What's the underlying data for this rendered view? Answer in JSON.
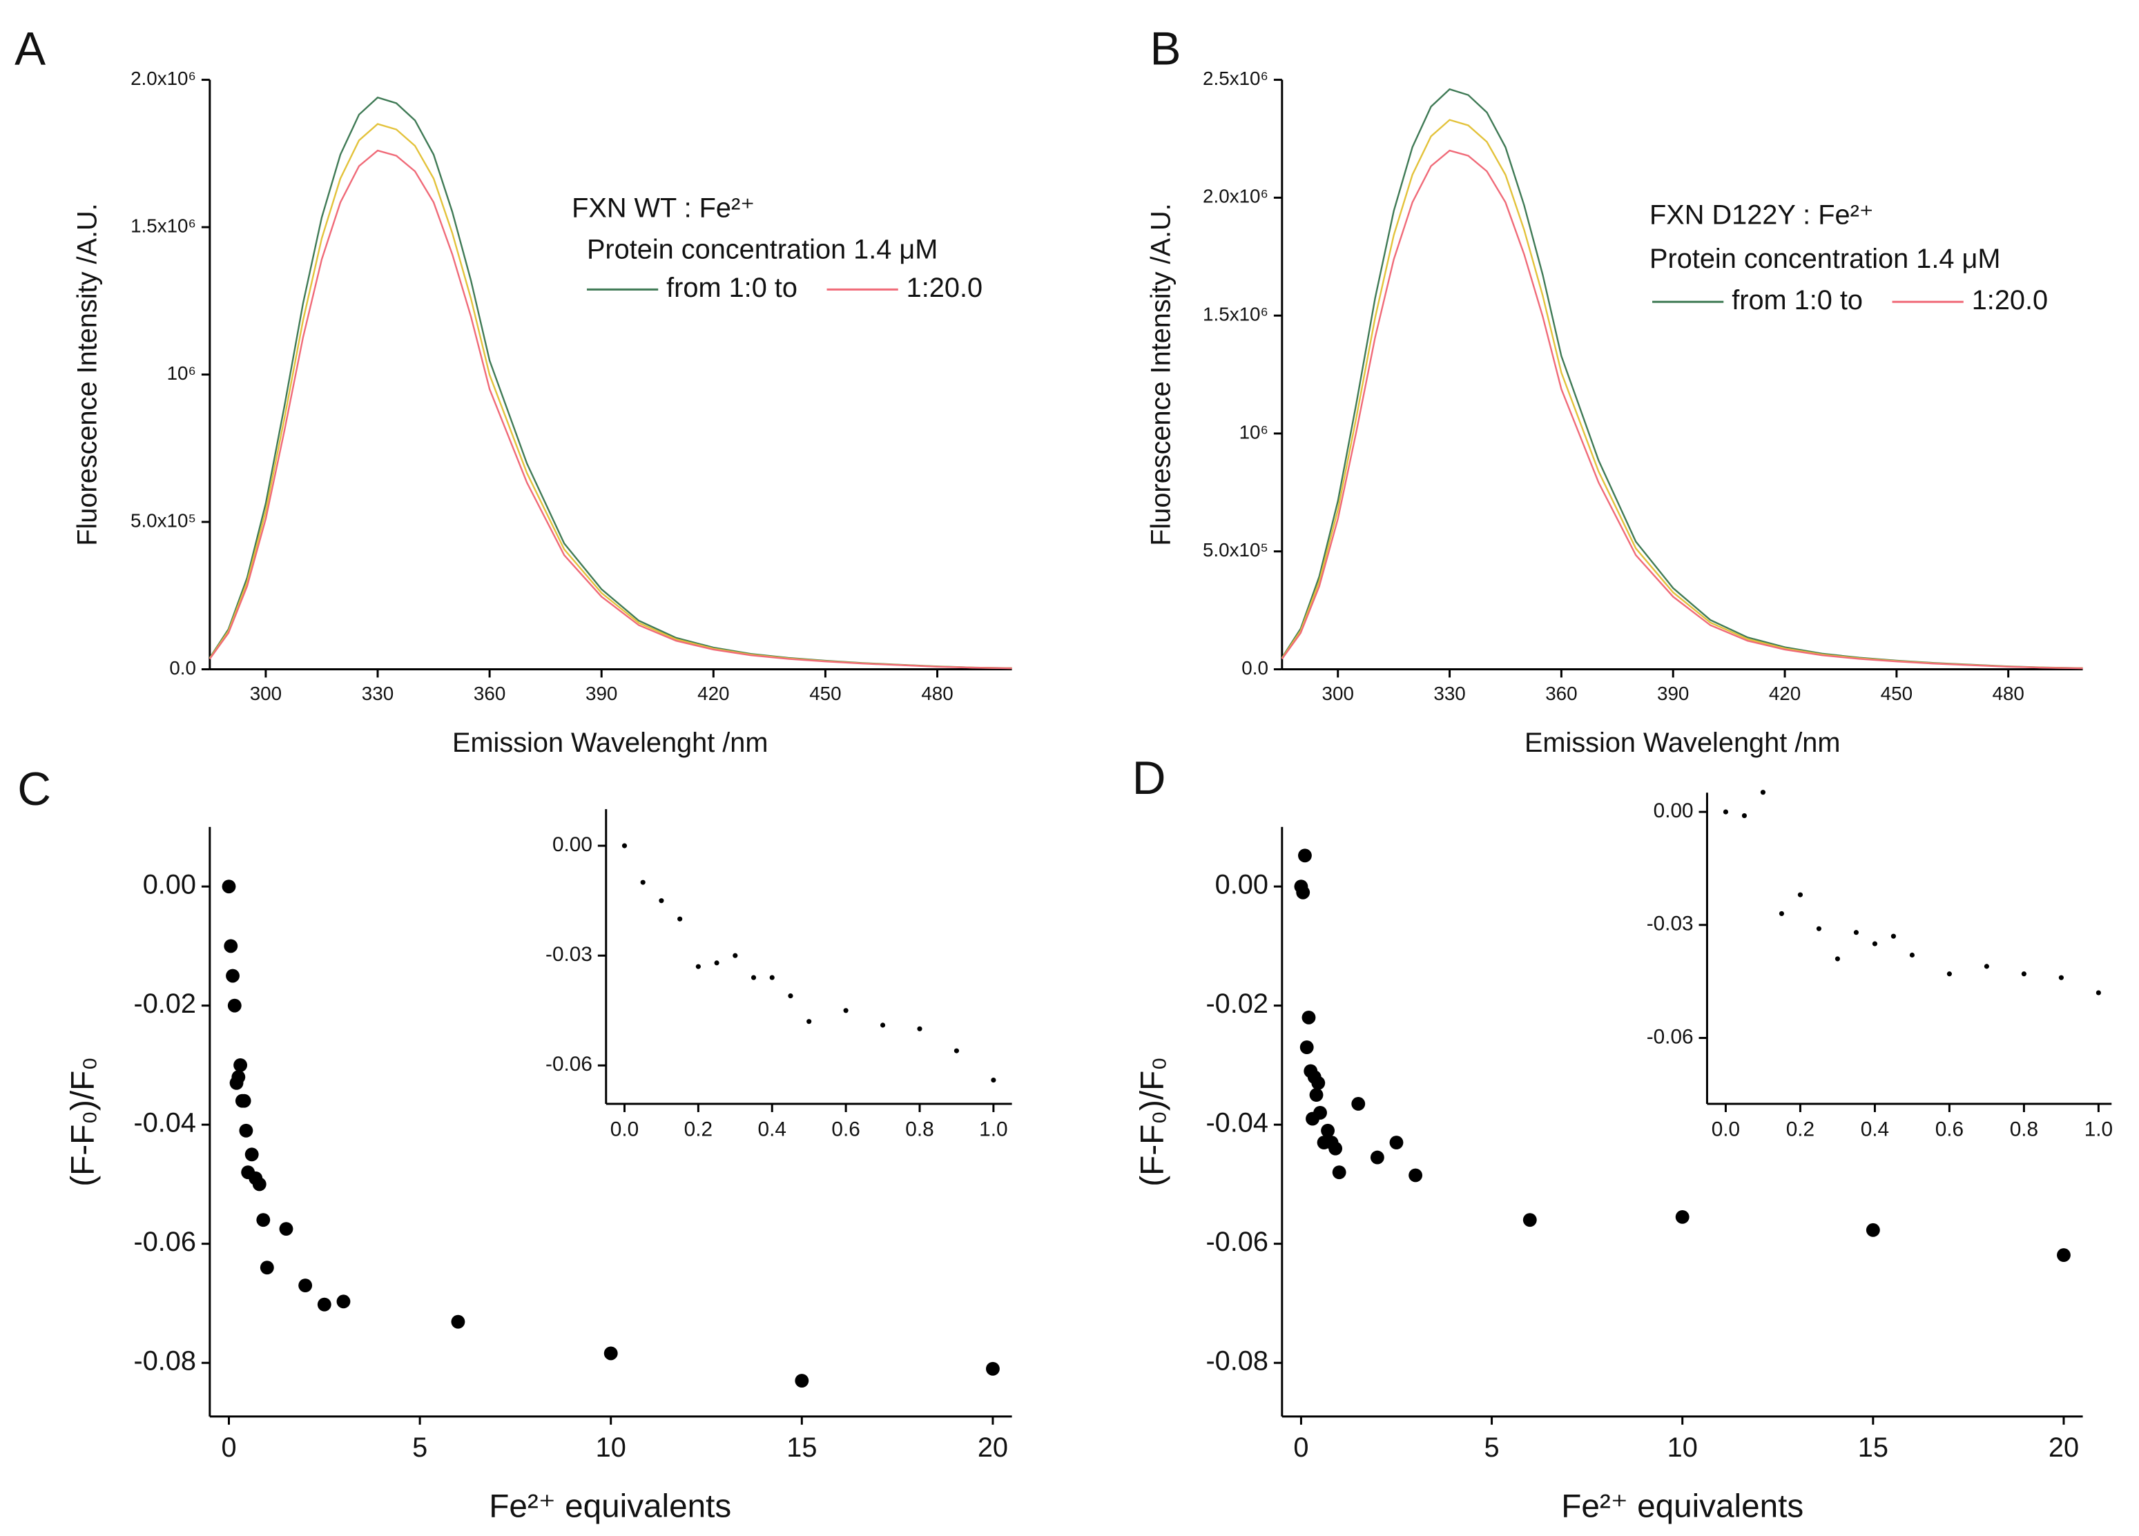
{
  "chart_data": [
    {
      "type": "line",
      "label": "A",
      "xlabel": "Emission Wavelenght /nm",
      "ylabel": "Fluorescence Intensity /A.U.",
      "annotations": [
        "FXN WT : Fe²⁺",
        "Protein concentration 1.4 μM"
      ],
      "x": [
        285,
        290,
        295,
        300,
        305,
        310,
        315,
        320,
        325,
        330,
        335,
        340,
        345,
        350,
        355,
        360,
        370,
        380,
        390,
        400,
        410,
        420,
        430,
        440,
        450,
        460,
        470,
        480,
        490,
        500
      ],
      "series": [
        {
          "name": "from 1:0 to",
          "color": "#3f7a55",
          "values": [
            38800,
            135800,
            310400,
            562600,
            892400,
            1241600,
            1532600,
            1746000,
            1881800,
            1940000,
            1920600,
            1862400,
            1746000,
            1552000,
            1319200,
            1047600,
            698400,
            426800,
            271600,
            164900,
            106700,
            73700,
            52400,
            38800,
            29100,
            21300,
            15500,
            9700,
            5800,
            3900
          ]
        },
        {
          "color": "#e3c23a",
          "values": [
            37000,
            129500,
            296000,
            536500,
            851000,
            1184000,
            1461500,
            1665000,
            1794500,
            1850000,
            1831500,
            1776000,
            1665000,
            1480000,
            1258000,
            999000,
            666000,
            407000,
            259000,
            157300,
            101800,
            70300,
            50000,
            37000,
            27800,
            20400,
            14800,
            9300,
            5600,
            3700
          ]
        },
        {
          "name": "1:20.0",
          "color": "#f06a78",
          "values": [
            35200,
            123200,
            281600,
            510400,
            809600,
            1126400,
            1390400,
            1584000,
            1707200,
            1760000,
            1742400,
            1689600,
            1584000,
            1408000,
            1196800,
            950400,
            633600,
            387200,
            246400,
            149600,
            96800,
            66900,
            47500,
            35200,
            26400,
            19400,
            14100,
            8800,
            5300,
            3500
          ]
        }
      ],
      "xlim": [
        285,
        500
      ],
      "xticks": [
        300,
        330,
        360,
        390,
        420,
        450,
        480
      ],
      "ylim": [
        0,
        2000000
      ],
      "yticks": [
        {
          "value": 0,
          "label": "0.0"
        },
        {
          "value": 500000,
          "label": "5.0x10⁵"
        },
        {
          "value": 1000000,
          "label": "10⁶"
        },
        {
          "value": 1500000,
          "label": "1.5x10⁶"
        },
        {
          "value": 2000000,
          "label": "2.0x10⁶"
        }
      ]
    },
    {
      "type": "line",
      "label": "B",
      "xlabel": "Emission Wavelenght /nm",
      "ylabel": "Fluorescence Intensity /A.U.",
      "annotations": [
        "FXN D122Y : Fe²⁺",
        "Protein concentration 1.4 μM"
      ],
      "x": [
        285,
        290,
        295,
        300,
        305,
        310,
        315,
        320,
        325,
        330,
        335,
        340,
        345,
        350,
        355,
        360,
        370,
        380,
        390,
        400,
        410,
        420,
        430,
        440,
        450,
        460,
        470,
        480,
        490,
        500
      ],
      "series": [
        {
          "name": "from 1:0 to",
          "color": "#3f7a55",
          "values": [
            49200,
            172200,
            393600,
            713400,
            1131600,
            1574400,
            1943400,
            2214000,
            2386200,
            2460000,
            2435400,
            2361600,
            2214000,
            1968000,
            1672800,
            1328400,
            885600,
            541200,
            344400,
            209100,
            135300,
            93500,
            66400,
            49200,
            36900,
            27100,
            19700,
            12300,
            7400,
            4900
          ]
        },
        {
          "color": "#e3c23a",
          "values": [
            46600,
            163100,
            372800,
            675700,
            1071800,
            1491200,
            1840700,
            2097000,
            2260100,
            2330000,
            2306700,
            2236800,
            2097000,
            1864000,
            1584400,
            1258200,
            838800,
            512600,
            326200,
            198100,
            128200,
            88500,
            62900,
            46600,
            35000,
            25600,
            18600,
            11700,
            7000,
            4700
          ]
        },
        {
          "name": "1:20.0",
          "color": "#f06a78",
          "values": [
            44000,
            154000,
            352000,
            638000,
            1012000,
            1408000,
            1738000,
            1980000,
            2134000,
            2200000,
            2178000,
            2112000,
            1980000,
            1760000,
            1496000,
            1188000,
            792000,
            484000,
            308000,
            187000,
            121000,
            83600,
            59400,
            44000,
            33000,
            24200,
            17600,
            11000,
            6600,
            4400
          ]
        }
      ],
      "xlim": [
        285,
        500
      ],
      "xticks": [
        300,
        330,
        360,
        390,
        420,
        450,
        480
      ],
      "ylim": [
        0,
        2500000
      ],
      "yticks": [
        {
          "value": 0,
          "label": "0.0"
        },
        {
          "value": 500000,
          "label": "5.0x10⁵"
        },
        {
          "value": 1000000,
          "label": "10⁶"
        },
        {
          "value": 1500000,
          "label": "1.5x10⁶"
        },
        {
          "value": 2000000,
          "label": "2.0x10⁶"
        },
        {
          "value": 2500000,
          "label": "2.5x10⁶"
        }
      ]
    },
    {
      "type": "scatter",
      "label": "C",
      "xlabel": "Fe²⁺ equivalents",
      "ylabel": "(F-F₀)/F₀",
      "color": "#000000",
      "x": [
        0,
        0.05,
        0.1,
        0.15,
        0.2,
        0.25,
        0.3,
        0.35,
        0.4,
        0.45,
        0.5,
        0.6,
        0.7,
        0.8,
        0.9,
        1,
        1.5,
        2,
        2.5,
        3,
        6,
        10,
        15,
        20
      ],
      "values": [
        0,
        -0.01,
        -0.015,
        -0.02,
        -0.033,
        -0.032,
        -0.03,
        -0.036,
        -0.036,
        -0.041,
        -0.048,
        -0.045,
        -0.049,
        -0.05,
        -0.056,
        -0.064,
        -0.0575,
        -0.067,
        -0.0702,
        -0.0697,
        -0.0731,
        -0.0784,
        -0.083,
        -0.081
      ],
      "xlim": [
        -0.5,
        20.5
      ],
      "xticks": [
        0,
        5,
        10,
        15,
        20
      ],
      "ylim": [
        -0.089,
        0.01
      ],
      "yticks": [
        {
          "value": 0,
          "label": "0.00"
        },
        -0.02,
        -0.04,
        -0.06,
        -0.08
      ],
      "inset": {
        "xlim": [
          -0.05,
          1.05
        ],
        "xticks": [
          {
            "value": 0,
            "label": "0.0"
          },
          0.2,
          0.4,
          0.6,
          0.8,
          {
            "value": 1,
            "label": "1.0"
          }
        ],
        "ylim": [
          -0.0705,
          0.01
        ],
        "yticks": [
          {
            "value": 0,
            "label": "0.00"
          },
          -0.03,
          -0.06
        ]
      }
    },
    {
      "type": "scatter",
      "label": "D",
      "xlabel": "Fe²⁺ equivalents",
      "ylabel": "(F-F₀)/F₀",
      "color": "#000000",
      "x": [
        0,
        0.05,
        0.1,
        0.15,
        0.2,
        0.25,
        0.3,
        0.35,
        0.4,
        0.45,
        0.5,
        0.6,
        0.7,
        0.8,
        0.9,
        1,
        1.5,
        2,
        2.5,
        3,
        6,
        10,
        15,
        20
      ],
      "values": [
        0,
        -0.001,
        0.0052,
        -0.027,
        -0.022,
        -0.031,
        -0.039,
        -0.032,
        -0.035,
        -0.033,
        -0.038,
        -0.043,
        -0.041,
        -0.043,
        -0.044,
        -0.048,
        -0.0365,
        -0.0455,
        -0.043,
        -0.0485,
        -0.056,
        -0.0555,
        -0.0577,
        -0.0619
      ],
      "xlim": [
        -0.5,
        20.5
      ],
      "xticks": [
        0,
        5,
        10,
        15,
        20
      ],
      "ylim": [
        -0.089,
        0.01
      ],
      "yticks": [
        {
          "value": 0,
          "label": "0.00"
        },
        -0.02,
        -0.04,
        -0.06,
        -0.08
      ],
      "inset": {
        "xlim": [
          -0.05,
          1.035
        ],
        "xticks": [
          {
            "value": 0,
            "label": "0.0"
          },
          0.2,
          0.4,
          0.6,
          0.8,
          {
            "value": 1,
            "label": "1.0"
          }
        ],
        "ylim": [
          -0.0775,
          0.0051
        ],
        "yticks": [
          {
            "value": 0,
            "label": "0.00"
          },
          -0.03,
          -0.06
        ]
      }
    }
  ]
}
